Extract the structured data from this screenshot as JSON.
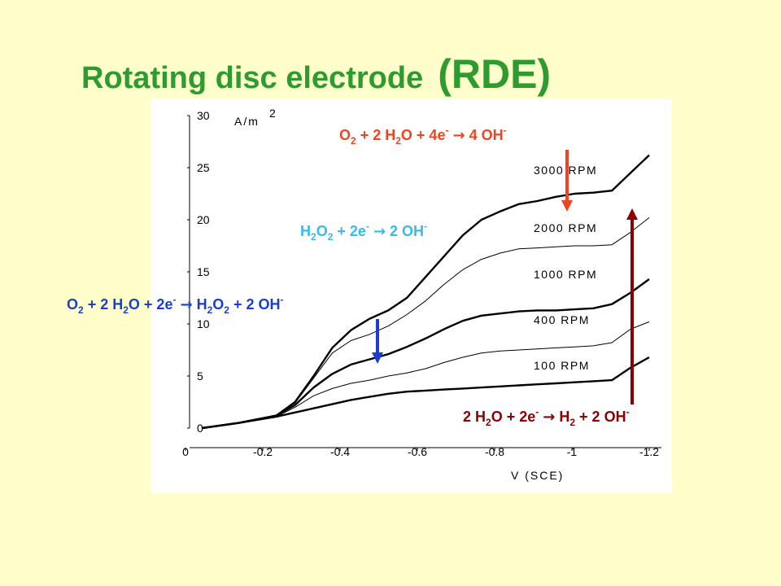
{
  "slide": {
    "title_main": "Rotating disc electrode",
    "title_abbr": "(RDE)"
  },
  "chart_data": {
    "type": "line",
    "xlabel": "V (SCE)",
    "ylabel": "A/m",
    "ylabel_sup": "2",
    "xlim": [
      0,
      -1.2
    ],
    "ylim": [
      0,
      30
    ],
    "x_ticks": [
      "0",
      "-0.2",
      "-0.4",
      "-0.6",
      "-0.8",
      "-1",
      "-1.2"
    ],
    "y_ticks": [
      "0",
      "5",
      "10",
      "15",
      "20",
      "25",
      "30"
    ],
    "grid": false,
    "series": [
      {
        "name": "3000 RPM",
        "points": [
          [
            0,
            0
          ],
          [
            -0.1,
            0.5
          ],
          [
            -0.2,
            1.2
          ],
          [
            -0.25,
            2.5
          ],
          [
            -0.3,
            5
          ],
          [
            -0.35,
            7.7
          ],
          [
            -0.4,
            9.4
          ],
          [
            -0.45,
            10.5
          ],
          [
            -0.5,
            11.3
          ],
          [
            -0.55,
            12.5
          ],
          [
            -0.6,
            14.5
          ],
          [
            -0.65,
            16.5
          ],
          [
            -0.7,
            18.5
          ],
          [
            -0.75,
            20
          ],
          [
            -0.8,
            20.8
          ],
          [
            -0.85,
            21.5
          ],
          [
            -0.9,
            21.8
          ],
          [
            -0.95,
            22.2
          ],
          [
            -1.0,
            22.5
          ],
          [
            -1.05,
            22.6
          ],
          [
            -1.1,
            22.8
          ],
          [
            -1.15,
            24.5
          ],
          [
            -1.2,
            26.2
          ]
        ]
      },
      {
        "name": "2000 RPM",
        "points": [
          [
            0,
            0
          ],
          [
            -0.1,
            0.5
          ],
          [
            -0.2,
            1.2
          ],
          [
            -0.25,
            2.4
          ],
          [
            -0.3,
            4.8
          ],
          [
            -0.35,
            7.2
          ],
          [
            -0.4,
            8.4
          ],
          [
            -0.45,
            9.0
          ],
          [
            -0.5,
            9.8
          ],
          [
            -0.55,
            10.9
          ],
          [
            -0.6,
            12.2
          ],
          [
            -0.65,
            13.8
          ],
          [
            -0.7,
            15.2
          ],
          [
            -0.75,
            16.2
          ],
          [
            -0.8,
            16.8
          ],
          [
            -0.85,
            17.2
          ],
          [
            -0.9,
            17.3
          ],
          [
            -0.95,
            17.4
          ],
          [
            -1.0,
            17.5
          ],
          [
            -1.05,
            17.5
          ],
          [
            -1.1,
            17.6
          ],
          [
            -1.15,
            18.8
          ],
          [
            -1.2,
            20.2
          ]
        ]
      },
      {
        "name": "1000 RPM",
        "points": [
          [
            0,
            0
          ],
          [
            -0.1,
            0.5
          ],
          [
            -0.2,
            1.2
          ],
          [
            -0.25,
            2.2
          ],
          [
            -0.3,
            3.9
          ],
          [
            -0.35,
            5.2
          ],
          [
            -0.4,
            6.1
          ],
          [
            -0.45,
            6.6
          ],
          [
            -0.5,
            7.1
          ],
          [
            -0.55,
            7.8
          ],
          [
            -0.6,
            8.6
          ],
          [
            -0.65,
            9.5
          ],
          [
            -0.7,
            10.3
          ],
          [
            -0.75,
            10.8
          ],
          [
            -0.8,
            11.0
          ],
          [
            -0.85,
            11.2
          ],
          [
            -0.9,
            11.3
          ],
          [
            -0.95,
            11.3
          ],
          [
            -1.0,
            11.4
          ],
          [
            -1.05,
            11.5
          ],
          [
            -1.1,
            11.9
          ],
          [
            -1.15,
            13.0
          ],
          [
            -1.2,
            14.3
          ]
        ]
      },
      {
        "name": "400 RPM",
        "points": [
          [
            0,
            0
          ],
          [
            -0.1,
            0.5
          ],
          [
            -0.2,
            1.1
          ],
          [
            -0.25,
            2.0
          ],
          [
            -0.3,
            3.1
          ],
          [
            -0.35,
            3.8
          ],
          [
            -0.4,
            4.3
          ],
          [
            -0.45,
            4.6
          ],
          [
            -0.5,
            5.0
          ],
          [
            -0.55,
            5.3
          ],
          [
            -0.6,
            5.7
          ],
          [
            -0.65,
            6.3
          ],
          [
            -0.7,
            6.8
          ],
          [
            -0.75,
            7.2
          ],
          [
            -0.8,
            7.4
          ],
          [
            -0.85,
            7.5
          ],
          [
            -0.9,
            7.6
          ],
          [
            -0.95,
            7.7
          ],
          [
            -1.0,
            7.8
          ],
          [
            -1.05,
            7.9
          ],
          [
            -1.1,
            8.2
          ],
          [
            -1.15,
            9.5
          ],
          [
            -1.2,
            10.2
          ]
        ]
      },
      {
        "name": "100 RPM",
        "points": [
          [
            0,
            0
          ],
          [
            -0.1,
            0.5
          ],
          [
            -0.2,
            1.1
          ],
          [
            -0.25,
            1.5
          ],
          [
            -0.3,
            1.9
          ],
          [
            -0.35,
            2.3
          ],
          [
            -0.4,
            2.7
          ],
          [
            -0.45,
            3.0
          ],
          [
            -0.5,
            3.3
          ],
          [
            -0.55,
            3.5
          ],
          [
            -0.6,
            3.6
          ],
          [
            -0.65,
            3.7
          ],
          [
            -0.7,
            3.8
          ],
          [
            -0.75,
            3.9
          ],
          [
            -0.8,
            4.0
          ],
          [
            -0.85,
            4.1
          ],
          [
            -0.9,
            4.2
          ],
          [
            -0.95,
            4.3
          ],
          [
            -1.0,
            4.4
          ],
          [
            -1.05,
            4.5
          ],
          [
            -1.1,
            4.6
          ],
          [
            -1.15,
            5.8
          ],
          [
            -1.2,
            6.8
          ]
        ]
      }
    ],
    "series_line_widths": [
      "thick",
      "thin",
      "thick",
      "thin",
      "thick"
    ],
    "annotations": [
      {
        "id": "o2-4e",
        "text": "O2 + 2 H2O + 4e- → 4 OH-",
        "color": "#EE4422",
        "arrow_to": {
          "series": "2000 RPM",
          "x": -0.99
        }
      },
      {
        "id": "h2o2",
        "text": "H2O2 + 2e- → 2 OH-",
        "color": "#33BBEE"
      },
      {
        "id": "o2-2e",
        "text": "O2 + 2 H2O + 2e- → H2O2 + 2 OH-",
        "color": "#1A3FCC",
        "arrow_to": {
          "series": "1000 RPM",
          "x": -0.5
        }
      },
      {
        "id": "h2",
        "text": "2 H2O + 2e- → H2 + 2 OH-",
        "color": "#8B0000",
        "arrow_to": {
          "series": "3000 RPM",
          "x": -1.15
        }
      }
    ]
  },
  "colors": {
    "background": "#FFFFCC",
    "plot_area": "#FFFFFF",
    "title": "#2E9B2E",
    "curve": "#000000"
  }
}
